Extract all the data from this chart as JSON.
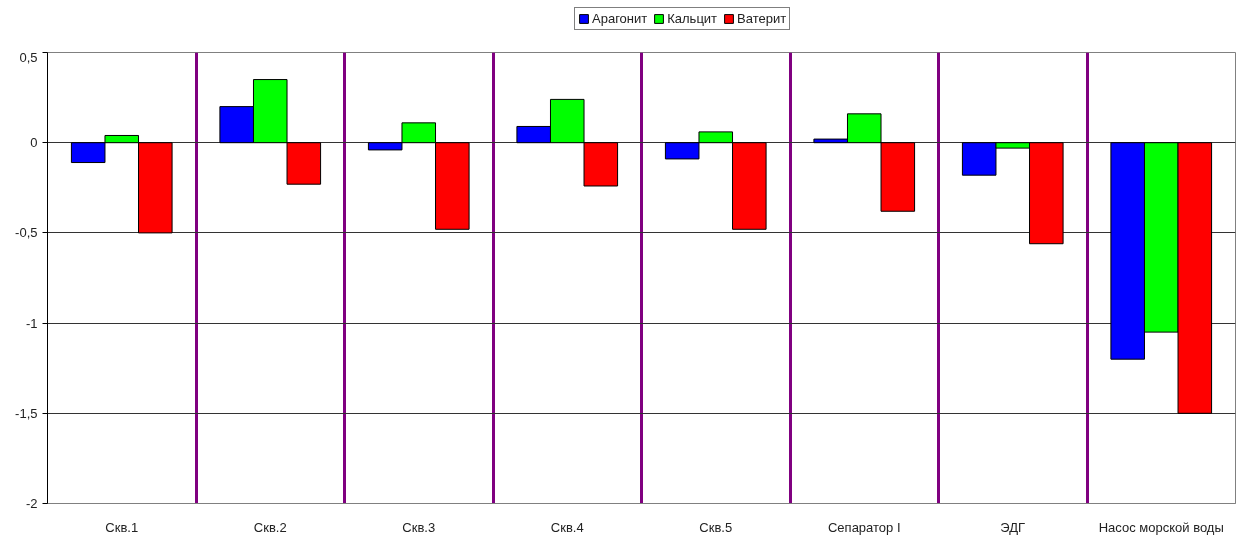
{
  "chart_data": {
    "type": "bar",
    "categories": [
      "Скв.1",
      "Скв.2",
      "Скв.3",
      "Скв.4",
      "Скв.5",
      "Сепаратор I",
      "ЭДГ",
      "Насос морской воды"
    ],
    "series": [
      {
        "name": "Арагонит",
        "color": "#0000ff",
        "values": [
          -0.11,
          0.2,
          -0.04,
          0.09,
          -0.09,
          0.02,
          -0.18,
          -1.2
        ]
      },
      {
        "name": "Кальцит",
        "color": "#00ff00",
        "values": [
          0.04,
          0.35,
          0.11,
          0.24,
          0.06,
          0.16,
          -0.03,
          -1.05
        ]
      },
      {
        "name": "Ватерит",
        "color": "#ff0000",
        "values": [
          -0.5,
          -0.23,
          -0.48,
          -0.24,
          -0.48,
          -0.38,
          -0.56,
          -1.5
        ]
      }
    ],
    "ylim": [
      -2,
      0.5
    ],
    "yticks": [
      {
        "value": 0.5,
        "label": "0,5"
      },
      0,
      {
        "value": -0.5,
        "label": "-0,5"
      },
      -1,
      {
        "value": -1.5,
        "label": "-1,5"
      },
      -2
    ],
    "grid": true,
    "legend": "top"
  }
}
